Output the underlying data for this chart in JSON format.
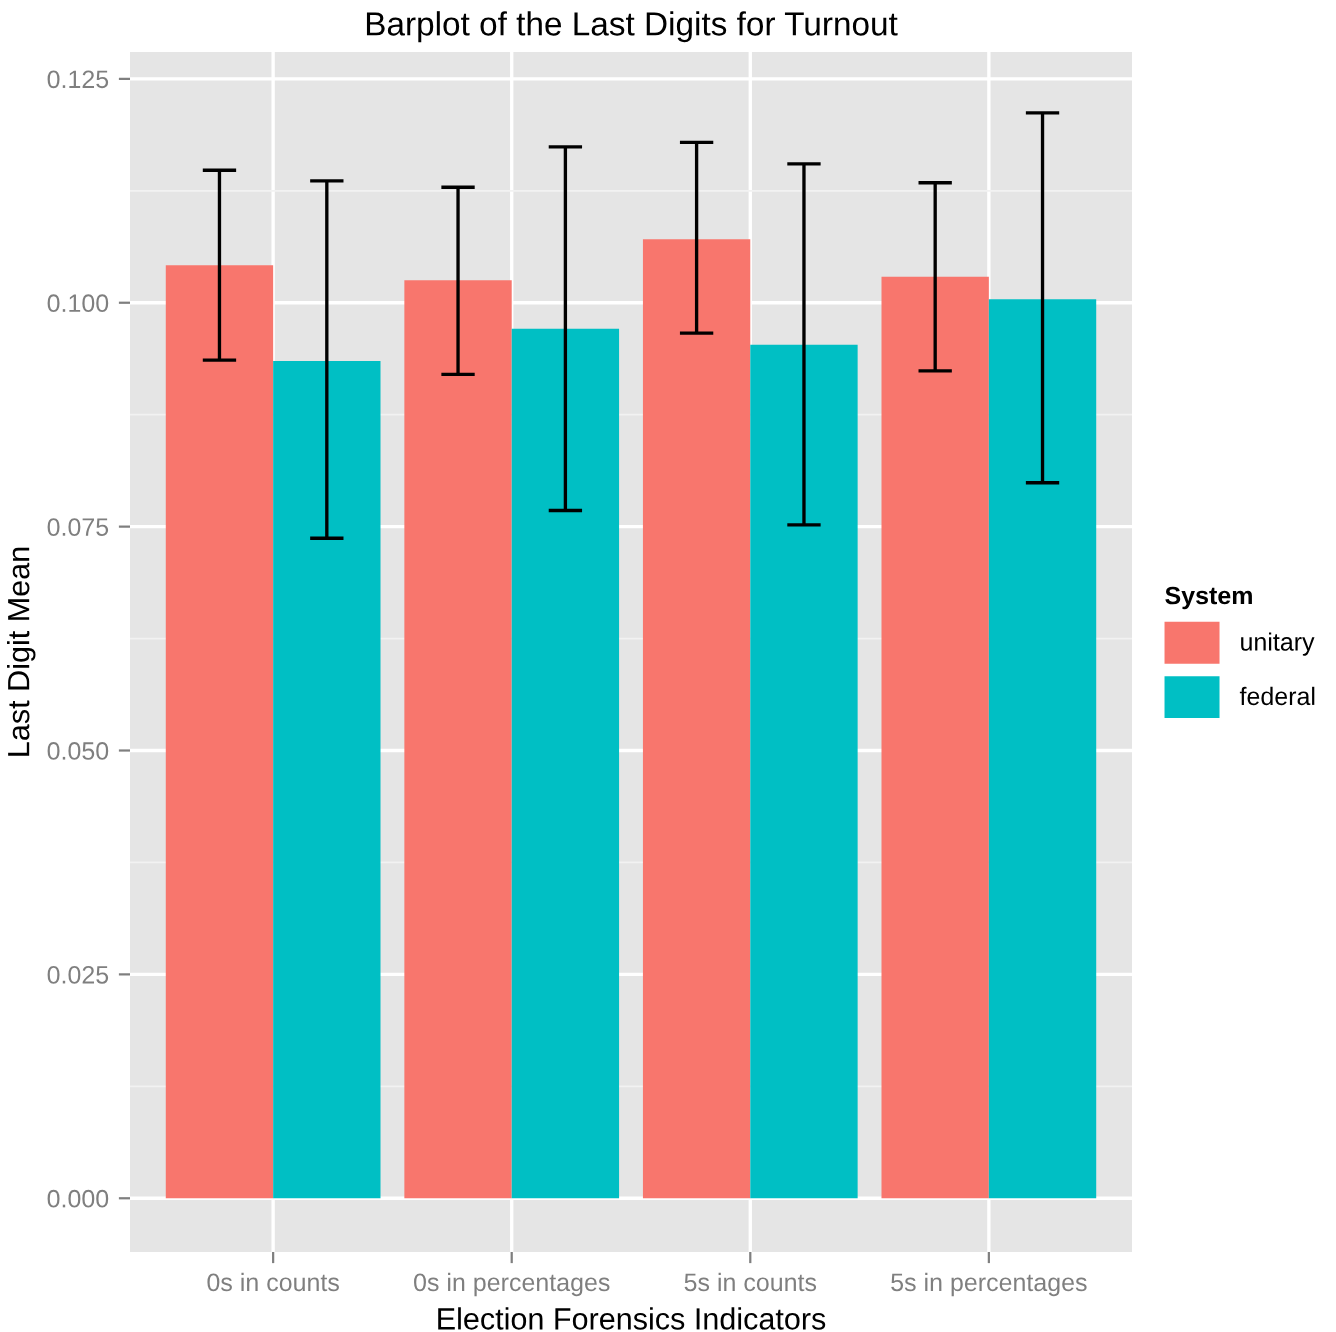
{
  "chart_data": {
    "type": "bar",
    "title": "Barplot of the Last Digits for Turnout",
    "xlabel": "Election Forensics Indicators",
    "ylabel": "Last Digit Mean",
    "legend_title": "System",
    "categories": [
      "0s in counts",
      "0s in percentages",
      "5s in counts",
      "5s in percentages"
    ],
    "series": [
      {
        "name": "unitary",
        "color": "#f8766d",
        "values": [
          0.1042,
          0.1025,
          0.1071,
          0.1029
        ],
        "errors": [
          [
            0.0936,
            0.1148
          ],
          [
            0.092,
            0.1129
          ],
          [
            0.0966,
            0.1179
          ],
          [
            0.0924,
            0.1134
          ]
        ]
      },
      {
        "name": "federal",
        "color": "#00bfc4",
        "values": [
          0.0935,
          0.0971,
          0.0953,
          0.1004
        ],
        "errors": [
          [
            0.0737,
            0.1136
          ],
          [
            0.0768,
            0.1174
          ],
          [
            0.0752,
            0.1155
          ],
          [
            0.0799,
            0.1212
          ]
        ]
      }
    ],
    "ylim": [
      -0.006,
      0.128
    ],
    "yticks": [
      {
        "value": 0,
        "label": "0.000"
      },
      {
        "value": 0.025,
        "label": "0.025"
      },
      {
        "value": 0.05,
        "label": "0.050"
      },
      {
        "value": 0.075,
        "label": "0.075"
      },
      {
        "value": 0.1,
        "label": "0.100"
      },
      {
        "value": 0.125,
        "label": "0.125"
      }
    ],
    "grid": true,
    "legend": "right"
  }
}
